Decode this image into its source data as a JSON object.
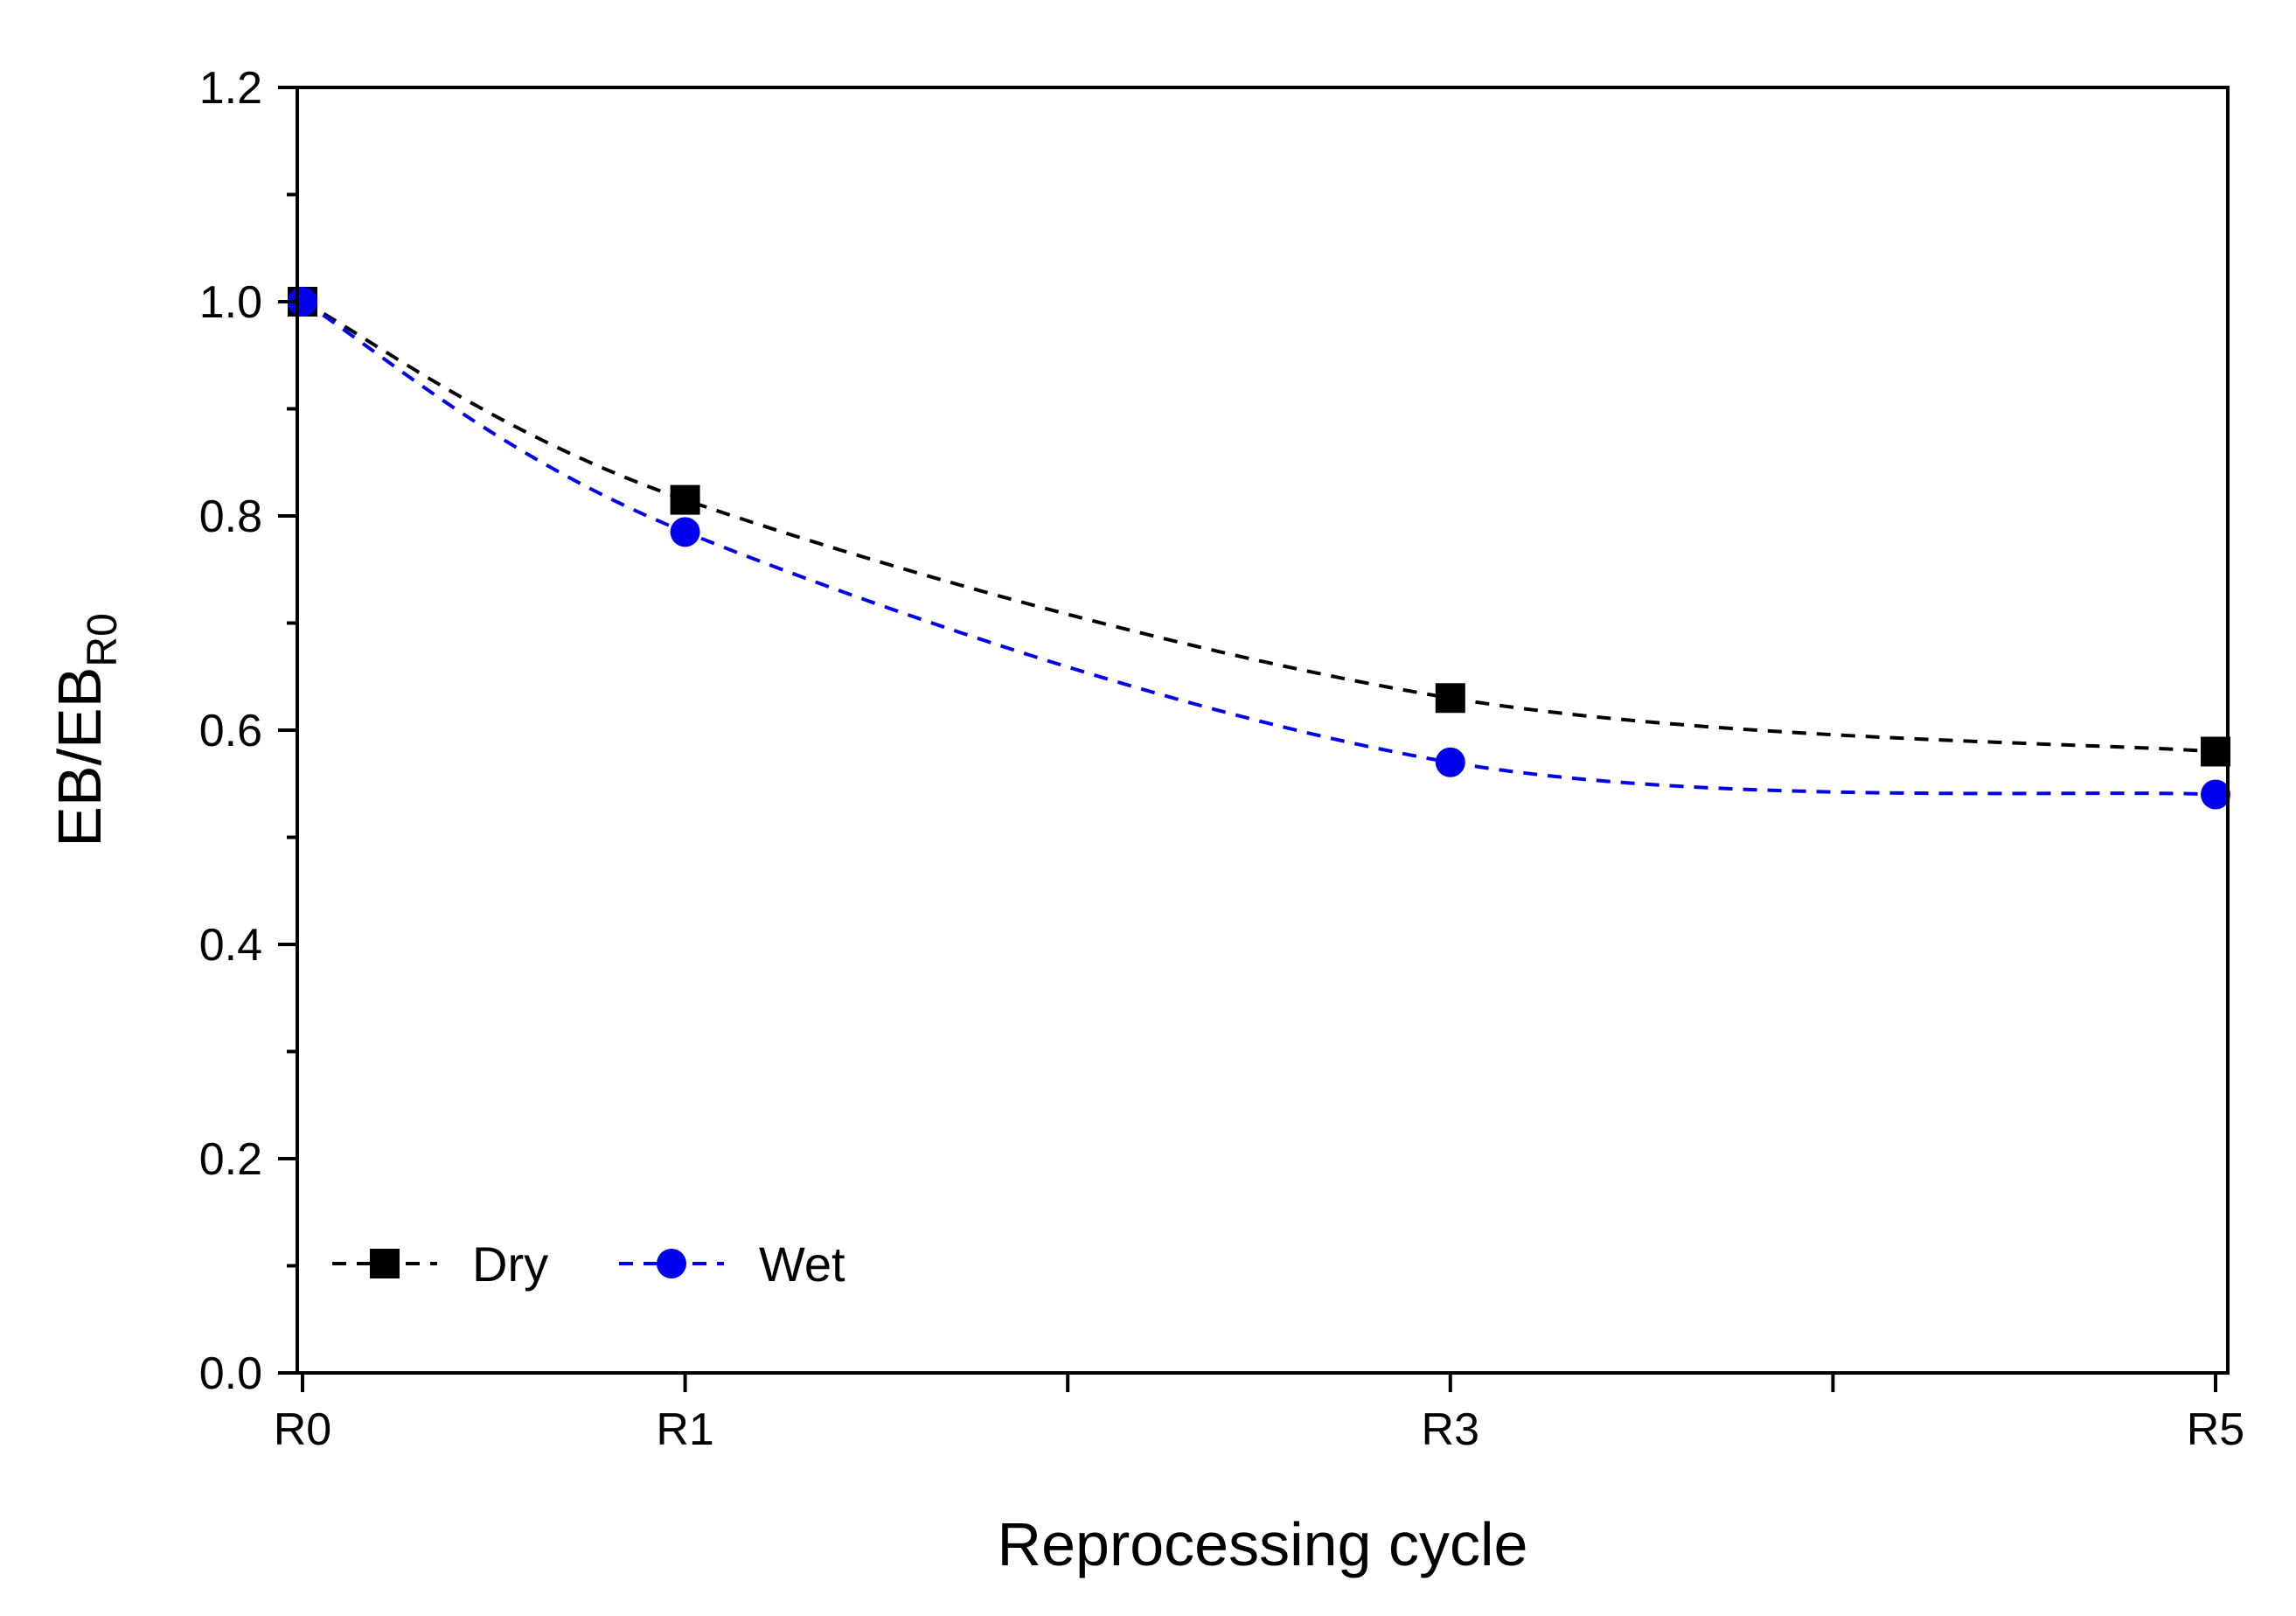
{
  "colors": {
    "dry": "#000000",
    "wet": "#0000ee",
    "axis": "#000000",
    "background": "#ffffff"
  },
  "chart_data": {
    "type": "line",
    "title": "",
    "xlabel": "Reprocessing cycle",
    "ylabel": {
      "main": "EB/EB",
      "subscript": "R0"
    },
    "x_categories": [
      "R0",
      "",
      "R1",
      "",
      "",
      "",
      "R3",
      "",
      "",
      "",
      "R5"
    ],
    "x": [
      0,
      1,
      3,
      5
    ],
    "x_tick_labels": [
      {
        "pos": 0,
        "label": "R0"
      },
      {
        "pos": 1,
        "label": "R1"
      },
      {
        "pos": 3,
        "label": "R3"
      },
      {
        "pos": 5,
        "label": "R5"
      }
    ],
    "x_major_ticks": [
      0,
      1,
      2,
      3,
      4,
      5
    ],
    "xlim": [
      0,
      5.05
    ],
    "ylim": [
      0.0,
      1.2
    ],
    "y_ticks": [
      0.0,
      0.2,
      0.4,
      0.6,
      0.8,
      1.0,
      1.2
    ],
    "y_tick_labels": [
      "0.0",
      "0.2",
      "0.4",
      "0.6",
      "0.8",
      "1.0",
      "1.2"
    ],
    "y_minor_ticks": [
      0.1,
      0.3,
      0.5,
      0.7,
      0.9,
      1.1
    ],
    "grid": false,
    "legend_position": "bottom-left",
    "series": [
      {
        "name": "Dry",
        "marker": "square",
        "line": "dashed",
        "color_key": "dry",
        "values": [
          1.0,
          0.815,
          0.63,
          0.58
        ]
      },
      {
        "name": "Wet",
        "marker": "circle",
        "line": "dashed",
        "color_key": "wet",
        "values": [
          1.0,
          0.785,
          0.57,
          0.54
        ]
      }
    ]
  }
}
